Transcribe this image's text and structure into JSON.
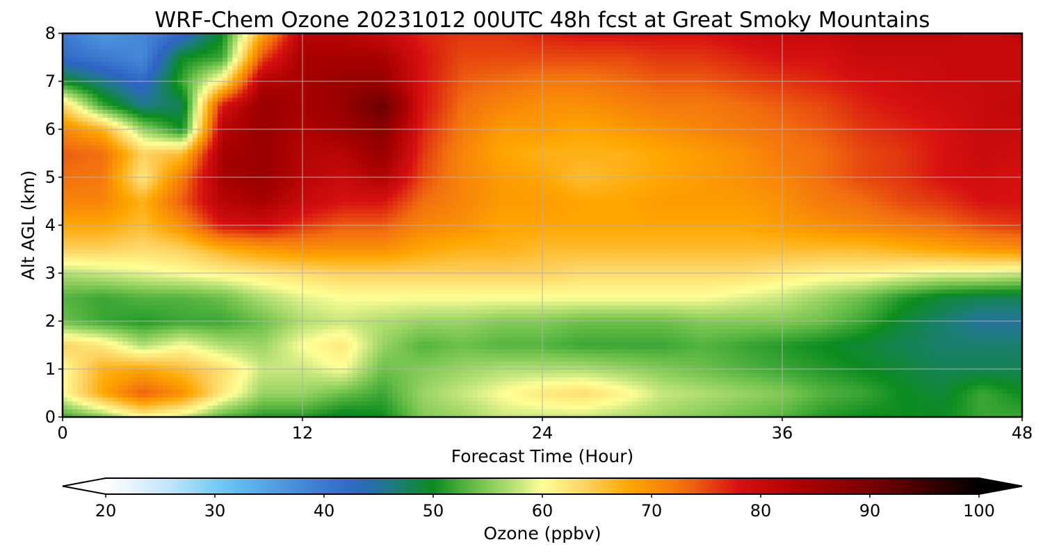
{
  "chart_data": {
    "type": "heatmap",
    "title": "WRF-Chem Ozone  20231012 00UTC 48h fcst at Great Smoky Mountains",
    "xlabel": "Forecast Time (Hour)",
    "ylabel": "Alt AGL (km)",
    "xlim": [
      0,
      48
    ],
    "ylim": [
      0,
      8
    ],
    "x_ticks": [
      "0",
      "12",
      "24",
      "36",
      "48"
    ],
    "y_ticks": [
      "0",
      "1",
      "2",
      "3",
      "4",
      "5",
      "6",
      "7",
      "8"
    ],
    "grid": true,
    "x": [
      0,
      2,
      4,
      6,
      8,
      10,
      12,
      14,
      16,
      18,
      20,
      22,
      24,
      26,
      28,
      30,
      32,
      34,
      36,
      38,
      40,
      42,
      44,
      46,
      48
    ],
    "y": [
      0,
      0.5,
      1,
      1.5,
      2,
      2.5,
      3,
      3.5,
      4,
      4.5,
      5,
      5.5,
      6,
      6.5,
      7,
      7.5,
      8
    ],
    "z": [
      [
        52,
        55,
        60,
        58,
        53,
        51,
        51,
        49,
        50,
        55,
        56,
        58,
        58,
        58,
        57,
        56,
        55,
        54,
        53,
        51,
        50,
        50,
        50,
        52,
        52
      ],
      [
        60,
        68,
        74,
        70,
        62,
        56,
        56,
        54,
        52,
        56,
        58,
        60,
        62,
        63,
        61,
        58,
        57,
        56,
        55,
        53,
        52,
        50,
        49,
        52,
        50
      ],
      [
        60,
        67,
        68,
        66,
        63,
        58,
        58,
        60,
        54,
        55,
        56,
        57,
        57,
        57,
        56,
        55,
        54,
        53,
        52,
        51,
        50,
        49,
        48,
        48,
        48
      ],
      [
        64,
        62,
        57,
        60,
        57,
        56,
        60,
        62,
        56,
        53,
        54,
        53,
        53,
        52,
        52,
        52,
        53,
        52,
        51,
        50,
        49,
        48,
        47,
        47,
        47
      ],
      [
        54,
        52,
        51,
        52,
        52,
        54,
        57,
        58,
        57,
        56,
        56,
        55,
        55,
        54,
        54,
        54,
        55,
        55,
        55,
        54,
        52,
        49,
        47,
        45,
        45
      ],
      [
        53,
        52,
        53,
        53,
        54,
        57,
        59,
        60,
        60,
        60,
        60,
        60,
        60,
        60,
        60,
        60,
        60,
        59,
        58,
        56,
        54,
        51,
        49,
        48,
        48
      ],
      [
        57,
        58,
        59,
        60,
        61,
        62,
        63,
        64,
        64,
        64,
        64,
        64,
        64,
        63,
        63,
        63,
        63,
        63,
        62,
        61,
        61,
        60,
        59,
        59,
        58
      ],
      [
        64,
        64,
        63,
        64,
        67,
        69,
        70,
        70,
        70,
        68,
        67,
        67,
        66,
        66,
        66,
        66,
        66,
        66,
        66,
        66,
        66,
        67,
        68,
        69,
        70
      ],
      [
        68,
        68,
        66,
        70,
        78,
        79,
        76,
        74,
        74,
        71,
        70,
        68,
        68,
        68,
        68,
        68,
        68,
        68,
        69,
        70,
        71,
        72,
        73,
        75,
        76
      ],
      [
        71,
        71,
        67,
        74,
        82,
        84,
        80,
        78,
        78,
        73,
        71,
        69,
        69,
        68,
        68,
        69,
        69,
        69,
        70,
        72,
        73,
        75,
        76,
        78,
        78
      ],
      [
        73,
        72,
        62,
        72,
        84,
        86,
        82,
        80,
        83,
        75,
        71,
        69,
        68,
        66,
        67,
        68,
        69,
        70,
        71,
        73,
        75,
        76,
        78,
        79,
        78
      ],
      [
        74,
        73,
        64,
        66,
        84,
        86,
        82,
        82,
        86,
        76,
        71,
        68,
        67,
        67,
        67,
        68,
        69,
        70,
        72,
        73,
        75,
        76,
        78,
        80,
        79
      ],
      [
        71,
        67,
        56,
        50,
        82,
        86,
        83,
        85,
        88,
        77,
        72,
        69,
        69,
        68,
        69,
        70,
        71,
        72,
        73,
        74,
        76,
        77,
        78,
        80,
        80
      ],
      [
        64,
        52,
        46,
        48,
        78,
        86,
        84,
        86,
        92,
        78,
        73,
        71,
        70,
        70,
        71,
        72,
        72,
        73,
        74,
        75,
        77,
        78,
        79,
        80,
        81
      ],
      [
        50,
        46,
        42,
        52,
        62,
        83,
        84,
        86,
        86,
        78,
        74,
        73,
        72,
        72,
        73,
        74,
        74,
        75,
        76,
        77,
        78,
        79,
        80,
        80,
        80
      ],
      [
        42,
        40,
        38,
        50,
        52,
        75,
        84,
        84,
        84,
        78,
        75,
        75,
        75,
        75,
        75,
        76,
        76,
        77,
        78,
        78,
        80,
        80,
        80,
        80,
        80
      ],
      [
        40,
        36,
        38,
        42,
        50,
        68,
        82,
        82,
        80,
        77,
        76,
        76,
        77,
        78,
        78,
        78,
        78,
        79,
        80,
        80,
        81,
        81,
        81,
        80,
        81
      ]
    ],
    "colorbar": {
      "label": "Ozone  (ppbv)",
      "min": 20,
      "max": 100,
      "ticks": [
        "20",
        "30",
        "40",
        "50",
        "60",
        "70",
        "80",
        "90",
        "100"
      ],
      "extend": "both",
      "stops": [
        [
          20,
          "#ffffff"
        ],
        [
          26,
          "#bfe4fb"
        ],
        [
          31,
          "#66c6f4"
        ],
        [
          37,
          "#4a90dc"
        ],
        [
          43,
          "#2e63c4"
        ],
        [
          46,
          "#1f7a86"
        ],
        [
          50,
          "#0b8c1f"
        ],
        [
          54,
          "#6cc04a"
        ],
        [
          58,
          "#c8e87e"
        ],
        [
          60,
          "#ffff96"
        ],
        [
          64,
          "#fdd260"
        ],
        [
          68,
          "#ffa600"
        ],
        [
          73,
          "#f26f0f"
        ],
        [
          78,
          "#d71010"
        ],
        [
          84,
          "#a80000"
        ],
        [
          90,
          "#7a0000"
        ],
        [
          95,
          "#400000"
        ],
        [
          100,
          "#000000"
        ]
      ]
    }
  }
}
